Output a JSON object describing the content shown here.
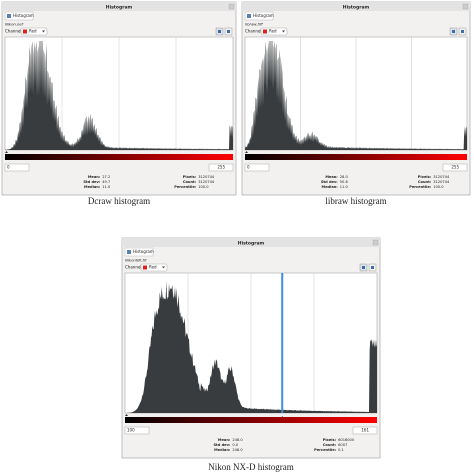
{
  "windows": [
    {
      "title": "Histogram",
      "tab": "Histogram",
      "file": "Nikon.nef",
      "channel_label": "Channel:",
      "channel": "Red",
      "range_min": "0",
      "range_max": "255",
      "stats": [
        {
          "label": "Mean:",
          "value": "27.2"
        },
        {
          "label": "Std dev:",
          "value": "49.7"
        },
        {
          "label": "Median:",
          "value": "11.0"
        },
        {
          "label": "Pixels:",
          "value": "3120744"
        },
        {
          "label": "Count:",
          "value": "3120744"
        },
        {
          "label": "Percentile:",
          "value": "100.0"
        }
      ],
      "caption": "Dcraw histogram"
    },
    {
      "title": "Histogram",
      "tab": "Histogram",
      "file": "libraw.tiff",
      "channel_label": "Channel:",
      "channel": "Red",
      "range_min": "0",
      "range_max": "255",
      "stats": [
        {
          "label": "Mean:",
          "value": "28.0"
        },
        {
          "label": "Std dev:",
          "value": "50.6"
        },
        {
          "label": "Median:",
          "value": "11.0"
        },
        {
          "label": "Pixels:",
          "value": "3120744"
        },
        {
          "label": "Count:",
          "value": "3120744"
        },
        {
          "label": "Percentile:",
          "value": "100.0"
        }
      ],
      "caption": "libraw histogram"
    },
    {
      "title": "Histogram",
      "tab": "Histogram",
      "file": "NikonNX.tif",
      "channel_label": "Channel:",
      "channel": "Red",
      "range_min": "100",
      "range_max": "161",
      "stats": [
        {
          "label": "Mean:",
          "value": "248.0"
        },
        {
          "label": "Std dev:",
          "value": "0.0"
        },
        {
          "label": "Median:",
          "value": "248.0"
        },
        {
          "label": "Pixels:",
          "value": "6016000"
        },
        {
          "label": "Count:",
          "value": "6007"
        },
        {
          "label": "Percentile:",
          "value": "0.1"
        }
      ],
      "caption": "Nikon NX-D histogram"
    }
  ]
}
